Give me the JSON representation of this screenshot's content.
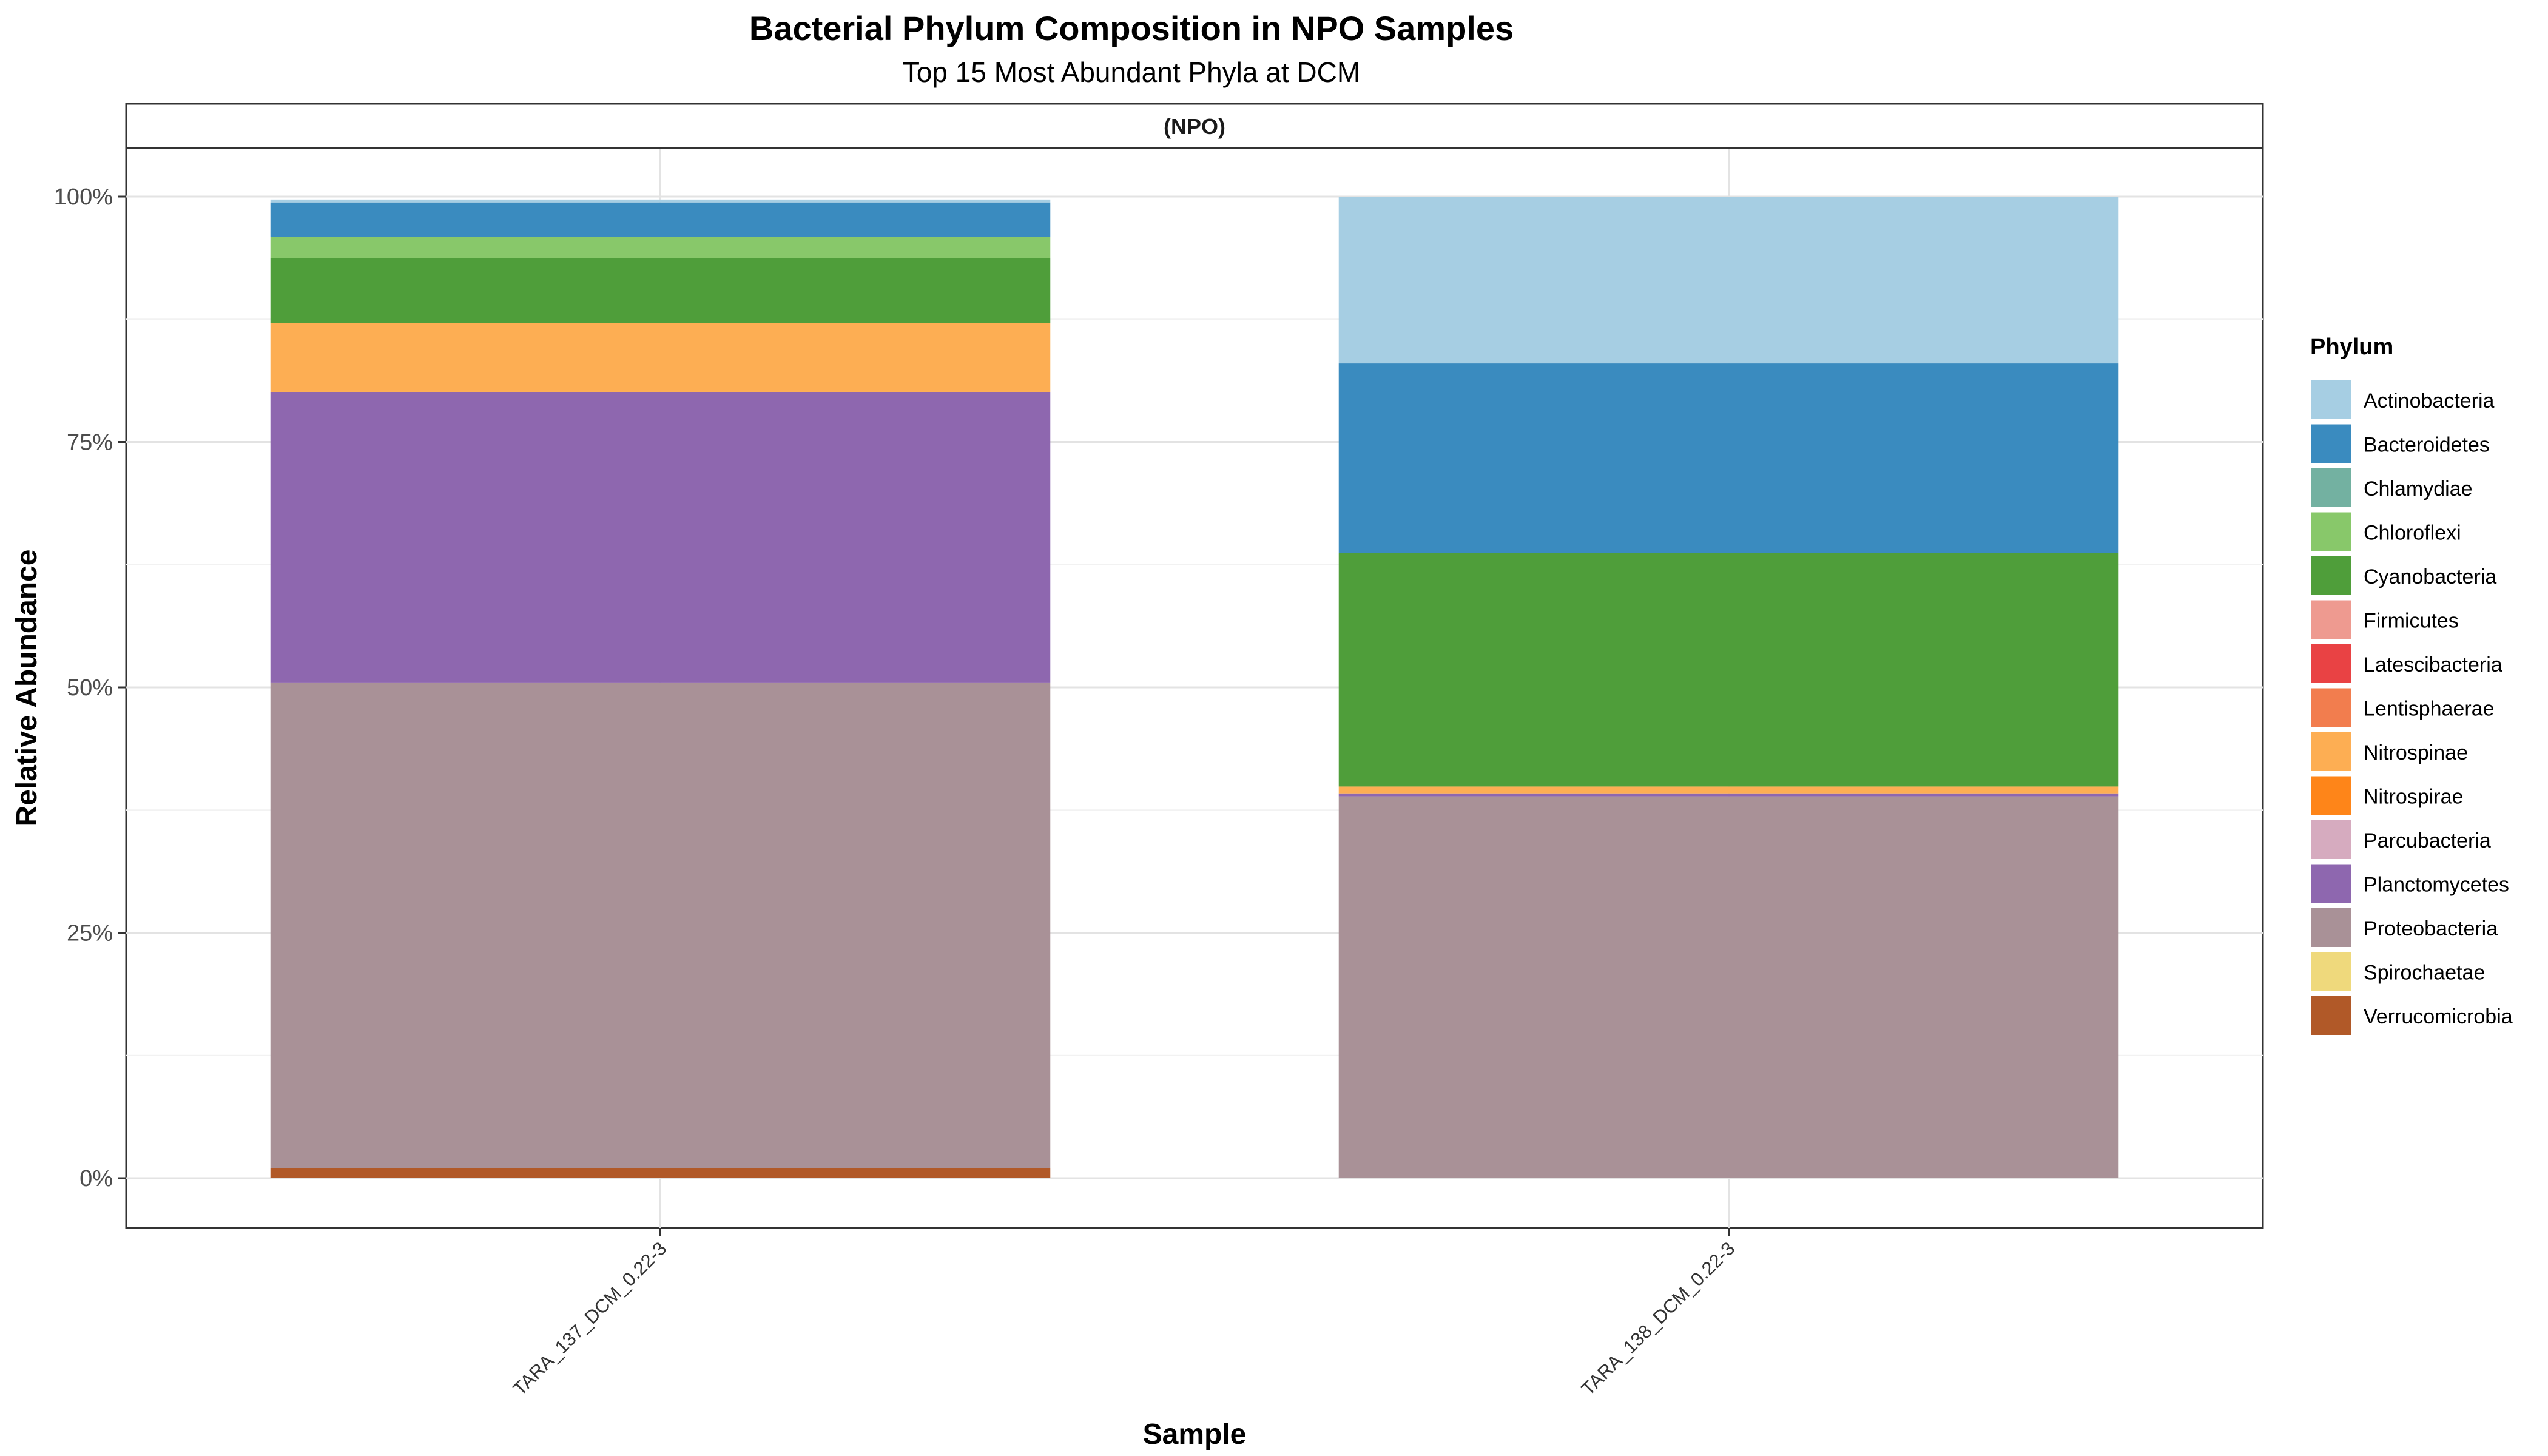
{
  "title": "Bacterial Phylum Composition in NPO Samples",
  "subtitle": "Top 15 Most Abundant Phyla at DCM",
  "chart_data": {
    "type": "bar",
    "stacked": true,
    "percent": true,
    "facet_label": "(NPO)",
    "xlabel": "Sample",
    "ylabel": "Relative Abundance",
    "ylim": [
      0,
      1
    ],
    "yticks": [
      {
        "value": 0,
        "label": "0%"
      },
      {
        "value": 0.25,
        "label": "25%"
      },
      {
        "value": 0.5,
        "label": "50%"
      },
      {
        "value": 0.75,
        "label": "75%"
      },
      {
        "value": 1,
        "label": "100%"
      }
    ],
    "categories": [
      "TARA_137_DCM_0.22-3",
      "TARA_138_DCM_0.22-3"
    ],
    "grid": true,
    "legend_title": "Phylum",
    "legend_position": "right",
    "series": [
      {
        "name": "Actinobacteria",
        "color": "#A6CEE3",
        "values": [
          0.003,
          0.17
        ]
      },
      {
        "name": "Bacteroidetes",
        "color": "#3A8BBF",
        "values": [
          0.035,
          0.193
        ]
      },
      {
        "name": "Chlamydiae",
        "color": "#73B1A1",
        "values": [
          0.0,
          0.0
        ]
      },
      {
        "name": "Chloroflexi",
        "color": "#88C86A",
        "values": [
          0.022,
          0.0
        ]
      },
      {
        "name": "Cyanobacteria",
        "color": "#4F9E3A",
        "values": [
          0.066,
          0.238
        ]
      },
      {
        "name": "Firmicutes",
        "color": "#EE9A90",
        "values": [
          0.0,
          0.0
        ]
      },
      {
        "name": "Latescibacteria",
        "color": "#E94244",
        "values": [
          0.0,
          0.0
        ]
      },
      {
        "name": "Lentisphaerae",
        "color": "#F27D4E",
        "values": [
          0.0,
          0.0
        ]
      },
      {
        "name": "Nitrospinae",
        "color": "#FDAE53",
        "values": [
          0.07,
          0.007
        ]
      },
      {
        "name": "Nitrospirae",
        "color": "#FE8519",
        "values": [
          0.0,
          0.0
        ]
      },
      {
        "name": "Parcubacteria",
        "color": "#D6ABBF",
        "values": [
          0.0,
          0.0
        ]
      },
      {
        "name": "Planctomycetes",
        "color": "#8E67AF",
        "values": [
          0.296,
          0.003
        ]
      },
      {
        "name": "Proteobacteria",
        "color": "#A99197",
        "values": [
          0.495,
          0.389
        ]
      },
      {
        "name": "Spirochaetae",
        "color": "#EFD97C",
        "values": [
          0.0,
          0.0
        ]
      },
      {
        "name": "Verrucomicrobia",
        "color": "#B15928",
        "values": [
          0.01,
          0.0
        ]
      }
    ]
  }
}
